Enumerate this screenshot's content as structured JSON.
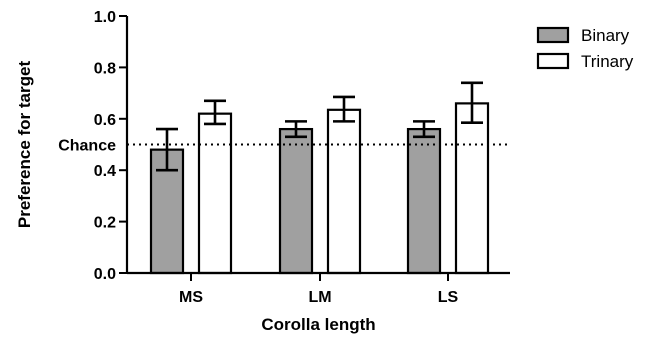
{
  "chart_data": {
    "type": "bar",
    "title": "",
    "xlabel": "Corolla length",
    "ylabel": "Preference for target",
    "categories": [
      "MS",
      "LM",
      "LS"
    ],
    "ylim": [
      0,
      1
    ],
    "yticks": [
      "0.0",
      "0.2",
      "0.4",
      "0.6",
      "0.8",
      "1.0"
    ],
    "ytick_values": [
      0,
      0.2,
      0.4,
      0.6,
      0.8,
      1.0
    ],
    "series": [
      {
        "name": "Binary",
        "color": "#a0a0a0",
        "values": [
          0.48,
          0.56,
          0.56
        ],
        "err_low": [
          0.4,
          0.53,
          0.53
        ],
        "err_high": [
          0.56,
          0.59,
          0.59
        ]
      },
      {
        "name": "Trinary",
        "color": "#ffffff",
        "values": [
          0.62,
          0.635,
          0.66
        ],
        "err_low": [
          0.58,
          0.59,
          0.585
        ],
        "err_high": [
          0.67,
          0.685,
          0.74
        ]
      }
    ],
    "reference_line": {
      "label": "Chance",
      "value": 0.5
    },
    "legend_position": "top-right",
    "grid": false
  }
}
